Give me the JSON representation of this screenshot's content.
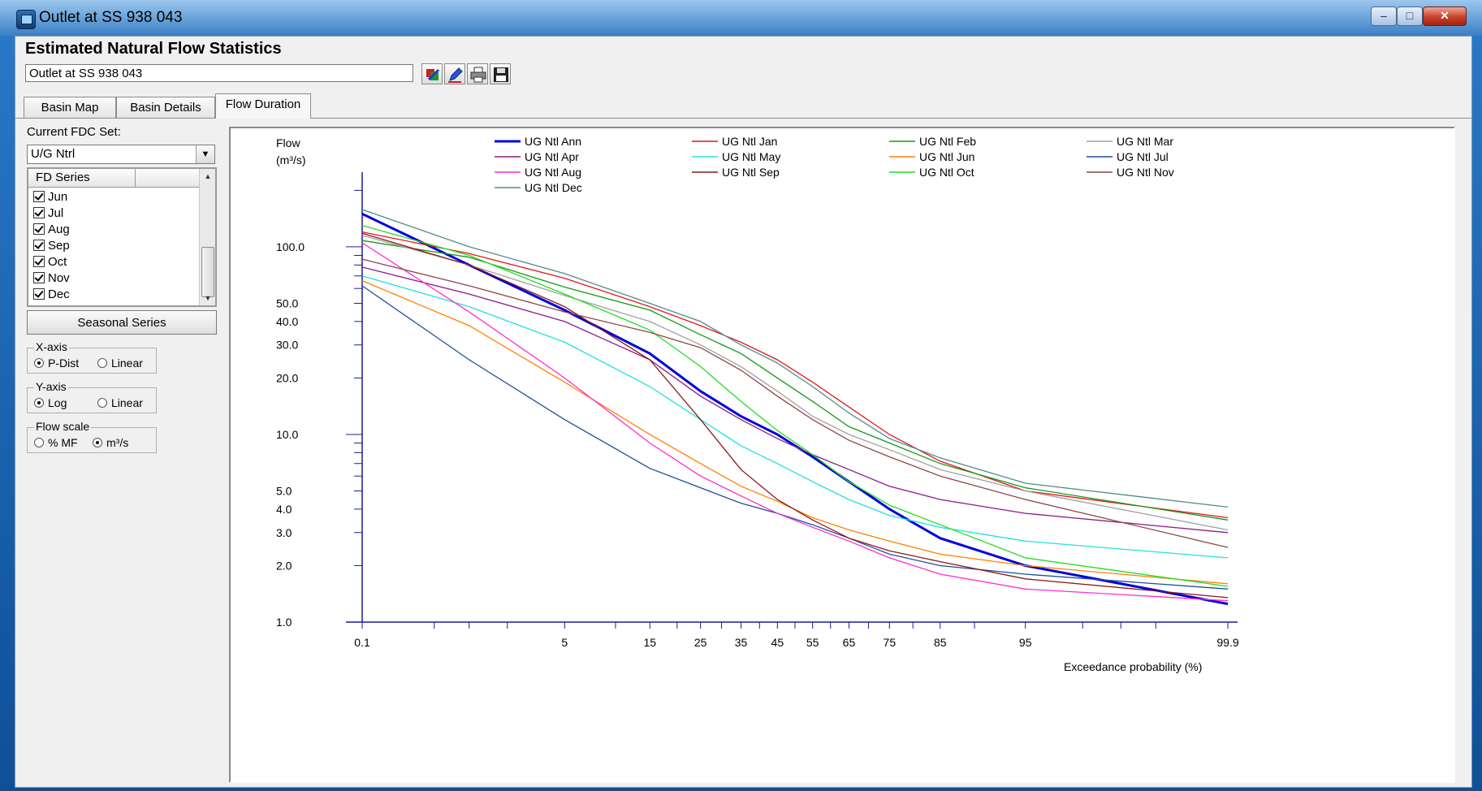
{
  "window": {
    "title": "Outlet at SS 938 043",
    "min_label": "–",
    "max_label": "□",
    "close_label": "✕"
  },
  "app": {
    "header": "Estimated Natural Flow Statistics",
    "location_value": "Outlet at SS 938 043"
  },
  "toolbar": {
    "icons": [
      "export-color-icon",
      "pen-icon",
      "printer-icon",
      "floppy-disk-icon"
    ]
  },
  "tabs": [
    {
      "label": "Basin Map",
      "active": false
    },
    {
      "label": "Basin Details",
      "active": false
    },
    {
      "label": "Flow Duration",
      "active": true
    }
  ],
  "sidebar": {
    "fdc_set_label": "Current FDC Set:",
    "fdc_set_value": "U/G Ntrl",
    "series_header": "FD Series",
    "series_items": [
      "Jun",
      "Jul",
      "Aug",
      "Sep",
      "Oct",
      "Nov",
      "Dec"
    ],
    "seasonal_button": "Seasonal Series",
    "xaxis": {
      "title": "X-axis",
      "opt1": "P-Dist",
      "opt2": "Linear",
      "selected": "P-Dist"
    },
    "yaxis": {
      "title": "Y-axis",
      "opt1": "Log",
      "opt2": "Linear",
      "selected": "Log"
    },
    "flowscale": {
      "title": "Flow scale",
      "opt1": "% MF",
      "opt2": "m³/s",
      "selected": "m³/s"
    }
  },
  "chart_data": {
    "type": "line",
    "ylabel_line1": "Flow",
    "ylabel_line2": "(m³/s)",
    "xlabel": "Exceedance probability (%)",
    "x_scale": "normal-probability",
    "y_scale": "log",
    "ylim": [
      1.0,
      250
    ],
    "xlim": [
      0.1,
      99.9
    ],
    "y_tick_labels": [
      "1.0",
      "2.0",
      "3.0",
      "4.0",
      "5.0",
      "10.0",
      "20.0",
      "30.0",
      "40.0",
      "50.0",
      "100.0"
    ],
    "x_tick_labels": [
      "0.1",
      "5",
      "15",
      "25",
      "35",
      "45",
      "55",
      "65",
      "75",
      "85",
      "95",
      "99.9"
    ],
    "legend_position": "top",
    "grid": false,
    "x": [
      0.1,
      1,
      5,
      15,
      25,
      35,
      45,
      55,
      65,
      75,
      85,
      95,
      99.9
    ],
    "series": [
      {
        "name": "UG Ntl Ann",
        "color": "#0000dd",
        "values": [
          150,
          80,
          46,
          27,
          17,
          12.5,
          10,
          7.6,
          5.6,
          4.0,
          2.8,
          2.0,
          1.25
        ]
      },
      {
        "name": "UG Ntl Jan",
        "color": "#e8141e",
        "values": [
          120,
          92,
          68,
          48,
          38,
          31,
          25,
          19,
          14,
          10,
          7.2,
          5.0,
          3.6
        ]
      },
      {
        "name": "UG Ntl Feb",
        "color": "#159a15",
        "values": [
          108,
          88,
          61,
          46,
          34,
          27,
          20,
          15,
          11,
          9,
          7.0,
          5.2,
          3.5
        ]
      },
      {
        "name": "UG Ntl Mar",
        "color": "#a0a0a0",
        "values": [
          115,
          80,
          55,
          40,
          30,
          23,
          17,
          12.5,
          10,
          8.3,
          6.5,
          5.0,
          3.1
        ]
      },
      {
        "name": "UG Ntl Apr",
        "color": "#8b1a8b",
        "values": [
          78,
          56,
          40,
          25,
          16,
          12,
          9.5,
          7.8,
          6.5,
          5.3,
          4.5,
          3.8,
          3.0
        ]
      },
      {
        "name": "UG Ntl May",
        "color": "#22e0e0",
        "values": [
          70,
          48,
          31,
          18,
          12,
          8.7,
          7.0,
          5.6,
          4.5,
          3.7,
          3.2,
          2.7,
          2.2
        ]
      },
      {
        "name": "UG Ntl Jun",
        "color": "#ff8000",
        "values": [
          66,
          38,
          19,
          10,
          7.0,
          5.3,
          4.4,
          3.6,
          3.1,
          2.7,
          2.3,
          2.0,
          1.6
        ]
      },
      {
        "name": "UG Ntl Jul",
        "color": "#1b4f9c",
        "values": [
          62,
          25,
          12,
          6.6,
          5.2,
          4.3,
          3.8,
          3.3,
          2.8,
          2.3,
          2.0,
          1.8,
          1.5
        ]
      },
      {
        "name": "UG Ntl Aug",
        "color": "#ff2ccf",
        "values": [
          105,
          45,
          20,
          9.0,
          6.0,
          4.7,
          3.8,
          3.2,
          2.7,
          2.2,
          1.8,
          1.5,
          1.3
        ]
      },
      {
        "name": "UG Ntl Sep",
        "color": "#8a1818",
        "values": [
          118,
          80,
          48,
          25,
          12,
          6.5,
          4.5,
          3.5,
          2.8,
          2.4,
          2.1,
          1.7,
          1.35
        ]
      },
      {
        "name": "UG Ntl Oct",
        "color": "#22dd22",
        "values": [
          130,
          90,
          56,
          36,
          23,
          15,
          10.5,
          7.8,
          5.6,
          4.2,
          3.3,
          2.2,
          1.55
        ]
      },
      {
        "name": "UG Ntl Nov",
        "color": "#8e4646",
        "values": [
          86,
          62,
          45,
          35,
          29,
          22,
          16,
          12,
          9.3,
          7.6,
          6.0,
          4.5,
          2.5
        ]
      },
      {
        "name": "UG Ntl Dec",
        "color": "#4e8c8c",
        "values": [
          158,
          100,
          72,
          50,
          40,
          30,
          24,
          18,
          13,
          9.5,
          7.5,
          5.5,
          4.1
        ]
      }
    ]
  }
}
